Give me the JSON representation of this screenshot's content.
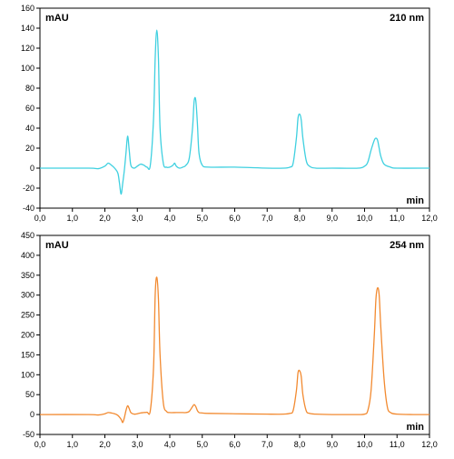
{
  "chart_data": [
    {
      "type": "line",
      "corner_label_left": "mAU",
      "corner_label_right": "210 nm",
      "xlabel": "min",
      "xlim": [
        0,
        12
      ],
      "ylim": [
        -40,
        160
      ],
      "xticks": [
        "0,0",
        "1,0",
        "2,0",
        "3,0",
        "4,0",
        "5,0",
        "6,0",
        "7,0",
        "8,0",
        "9,0",
        "10,0",
        "11,0",
        "12,0"
      ],
      "yticks": [
        "-40",
        "-20",
        "0",
        "20",
        "40",
        "60",
        "80",
        "100",
        "120",
        "140",
        "160"
      ],
      "grid": false,
      "series": [
        {
          "color": "#3fd0e0",
          "x": [
            0.0,
            1.5,
            1.8,
            2.0,
            2.1,
            2.2,
            2.3,
            2.4,
            2.45,
            2.5,
            2.55,
            2.6,
            2.65,
            2.7,
            2.75,
            2.8,
            2.9,
            3.0,
            3.1,
            3.2,
            3.3,
            3.4,
            3.5,
            3.55,
            3.6,
            3.65,
            3.7,
            3.8,
            3.9,
            4.0,
            4.1,
            4.15,
            4.2,
            4.3,
            4.4,
            4.5,
            4.6,
            4.7,
            4.75,
            4.8,
            4.85,
            4.9,
            5.0,
            5.2,
            6.0,
            7.0,
            7.5,
            7.7,
            7.8,
            7.9,
            7.95,
            8.0,
            8.05,
            8.1,
            8.2,
            8.3,
            8.5,
            9.0,
            9.8,
            10.0,
            10.1,
            10.2,
            10.3,
            10.35,
            10.4,
            10.45,
            10.5,
            10.6,
            10.8,
            11.0,
            12.0
          ],
          "y": [
            0,
            0,
            -0.5,
            2,
            5,
            3,
            0,
            -5,
            -15,
            -26,
            -15,
            -2,
            15,
            32,
            18,
            3,
            0,
            2,
            4,
            3,
            1,
            3,
            50,
            110,
            138,
            110,
            40,
            5,
            1,
            1,
            3,
            5,
            2,
            0,
            1,
            3,
            10,
            40,
            67,
            68,
            45,
            15,
            3,
            1,
            1,
            0,
            0,
            1,
            5,
            30,
            50,
            54,
            48,
            30,
            8,
            2,
            0,
            0,
            0,
            2,
            6,
            18,
            28,
            30,
            28,
            20,
            12,
            4,
            1,
            0,
            0
          ]
        }
      ]
    },
    {
      "type": "line",
      "corner_label_left": "mAU",
      "corner_label_right": "254 nm",
      "xlabel": "min",
      "xlim": [
        0,
        12
      ],
      "ylim": [
        -50,
        450
      ],
      "xticks": [
        "0,0",
        "1,0",
        "2,0",
        "3,0",
        "4,0",
        "5,0",
        "6,0",
        "7,0",
        "8,0",
        "9,0",
        "10,0",
        "11,0",
        "12,0"
      ],
      "yticks": [
        "-50",
        "0",
        "50",
        "100",
        "150",
        "200",
        "250",
        "300",
        "350",
        "400",
        "450"
      ],
      "grid": false,
      "series": [
        {
          "color": "#f28a30",
          "x": [
            0.0,
            1.5,
            1.8,
            2.0,
            2.1,
            2.2,
            2.3,
            2.4,
            2.5,
            2.55,
            2.6,
            2.65,
            2.7,
            2.75,
            2.8,
            2.9,
            3.0,
            3.1,
            3.2,
            3.3,
            3.4,
            3.5,
            3.55,
            3.6,
            3.65,
            3.7,
            3.8,
            3.9,
            4.0,
            4.2,
            4.4,
            4.5,
            4.6,
            4.7,
            4.75,
            4.8,
            4.85,
            4.9,
            5.0,
            5.2,
            6.0,
            7.0,
            7.5,
            7.7,
            7.8,
            7.9,
            7.95,
            8.0,
            8.05,
            8.1,
            8.2,
            8.3,
            8.5,
            9.0,
            9.5,
            9.8,
            10.0,
            10.1,
            10.2,
            10.3,
            10.35,
            10.4,
            10.45,
            10.5,
            10.6,
            10.7,
            10.8,
            11.0,
            11.5,
            12.0
          ],
          "y": [
            0,
            0,
            -1,
            2,
            5,
            4,
            2,
            -2,
            -12,
            -20,
            -8,
            10,
            22,
            15,
            5,
            1,
            2,
            4,
            5,
            6,
            10,
            120,
            300,
            345,
            290,
            150,
            30,
            8,
            5,
            5,
            5,
            5,
            8,
            20,
            25,
            20,
            10,
            5,
            4,
            3,
            2,
            1,
            1,
            3,
            10,
            60,
            105,
            110,
            95,
            50,
            10,
            3,
            1,
            0,
            0,
            0,
            1,
            10,
            60,
            200,
            290,
            318,
            300,
            220,
            90,
            20,
            5,
            1,
            0,
            0
          ]
        }
      ]
    }
  ]
}
